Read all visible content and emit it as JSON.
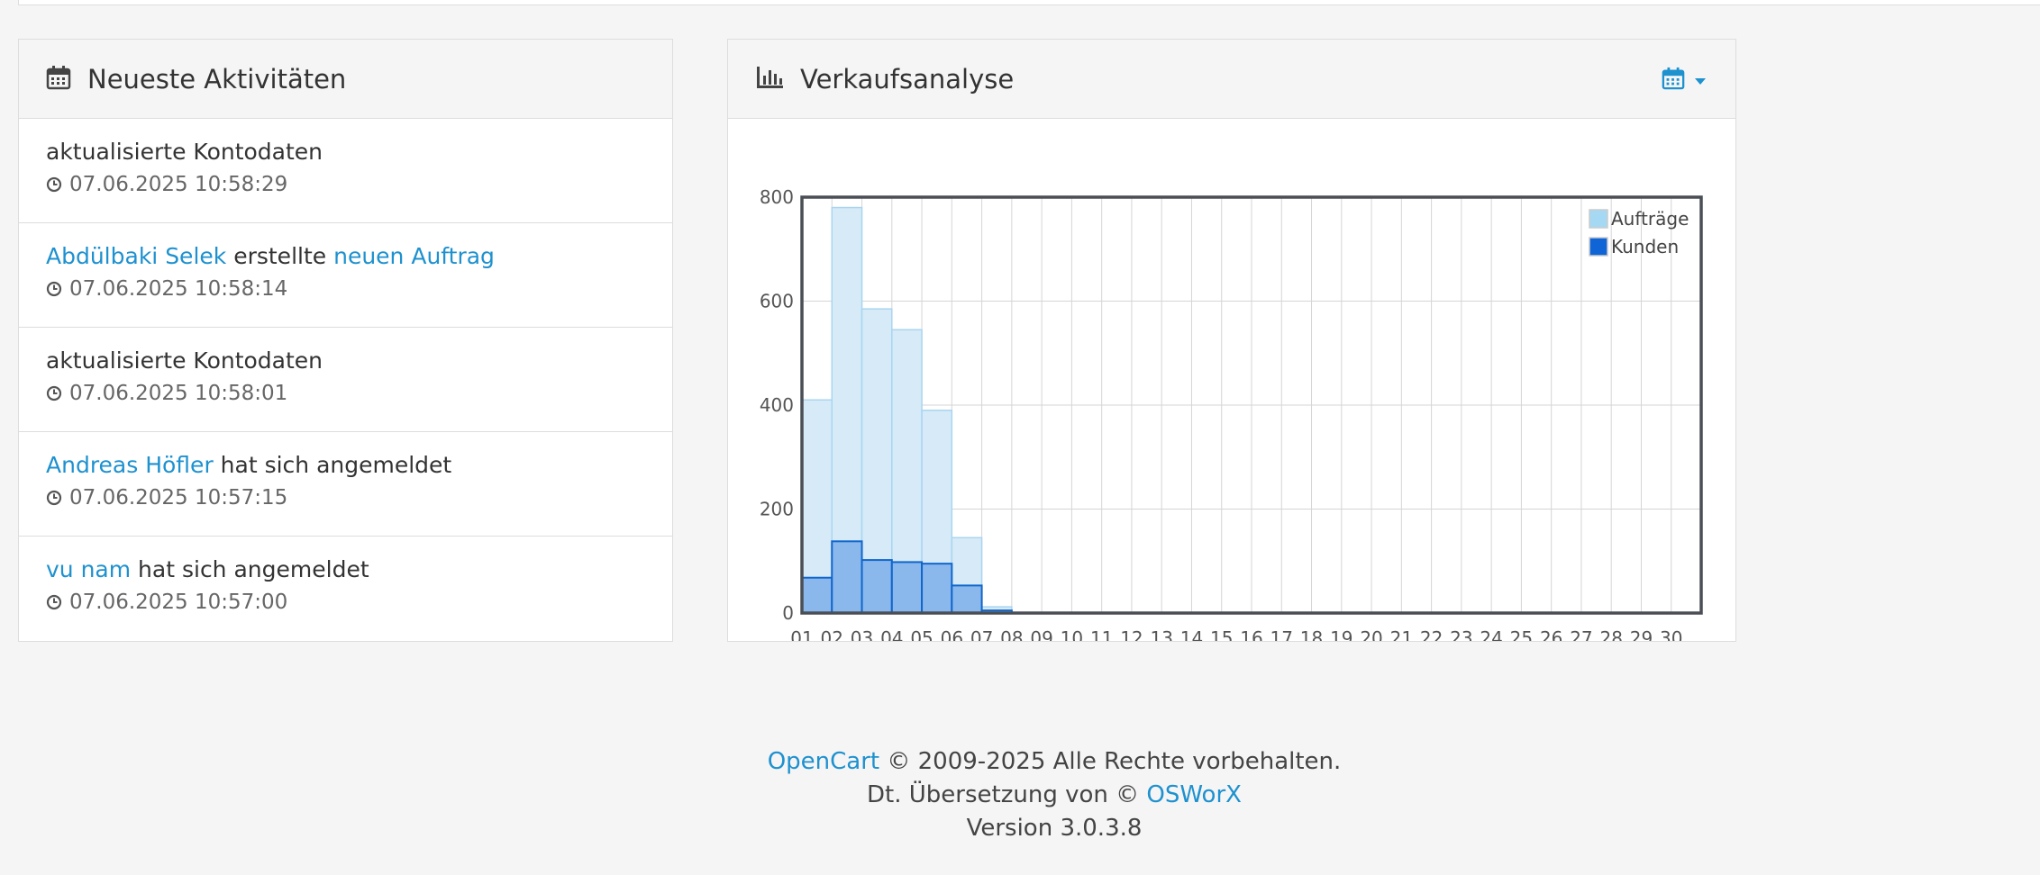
{
  "activities": {
    "title": "Neueste Aktivitäten",
    "items": [
      {
        "parts": [
          {
            "text": "aktualisierte Kontodaten",
            "link": false
          }
        ],
        "time": "07.06.2025 10:58:29"
      },
      {
        "parts": [
          {
            "text": "Abdülbaki Selek",
            "link": true
          },
          {
            "text": " erstellte ",
            "link": false
          },
          {
            "text": "neuen Auftrag",
            "link": true
          }
        ],
        "time": "07.06.2025 10:58:14"
      },
      {
        "parts": [
          {
            "text": "aktualisierte Kontodaten",
            "link": false
          }
        ],
        "time": "07.06.2025 10:58:01"
      },
      {
        "parts": [
          {
            "text": "Andreas Höfler",
            "link": true
          },
          {
            "text": " hat sich angemeldet",
            "link": false
          }
        ],
        "time": "07.06.2025 10:57:15"
      },
      {
        "parts": [
          {
            "text": "vu nam",
            "link": true
          },
          {
            "text": " hat sich angemeldet",
            "link": false
          }
        ],
        "time": "07.06.2025 10:57:00"
      }
    ]
  },
  "sales": {
    "title": "Verkaufsanalyse"
  },
  "chart_data": {
    "type": "bar",
    "categories": [
      "01",
      "02",
      "03",
      "04",
      "05",
      "06",
      "07",
      "08",
      "09",
      "10",
      "11",
      "12",
      "13",
      "14",
      "15",
      "16",
      "17",
      "18",
      "19",
      "20",
      "21",
      "22",
      "23",
      "24",
      "25",
      "26",
      "27",
      "28",
      "29",
      "30"
    ],
    "series": [
      {
        "name": "Aufträge",
        "values": [
          410,
          780,
          585,
          545,
          390,
          145,
          12,
          0,
          0,
          0,
          0,
          0,
          0,
          0,
          0,
          0,
          0,
          0,
          0,
          0,
          0,
          0,
          0,
          0,
          0,
          0,
          0,
          0,
          0,
          0
        ]
      },
      {
        "name": "Kunden",
        "values": [
          68,
          138,
          102,
          98,
          95,
          53,
          5,
          0,
          0,
          0,
          0,
          0,
          0,
          0,
          0,
          0,
          0,
          0,
          0,
          0,
          0,
          0,
          0,
          0,
          0,
          0,
          0,
          0,
          0,
          0
        ]
      }
    ],
    "yticks": [
      0,
      200,
      400,
      600,
      800
    ],
    "ylim": [
      0,
      800
    ],
    "legend_position": "top-right",
    "colors": {
      "orders_fill": "#d6eaf7",
      "orders_stroke": "#a9d5f0",
      "customers_fill": "#8ab8ec",
      "customers_stroke": "#1166cc",
      "legend_orders": "#a5d8f3",
      "legend_customers": "#1065d6"
    }
  },
  "footer": {
    "opencart": "OpenCart",
    "copyright": " © 2009-2025 Alle Rechte vorbehalten.",
    "translation_prefix": "Dt. Übersetzung von © ",
    "osworx": "OSWorX",
    "version": "Version 3.0.3.8"
  }
}
